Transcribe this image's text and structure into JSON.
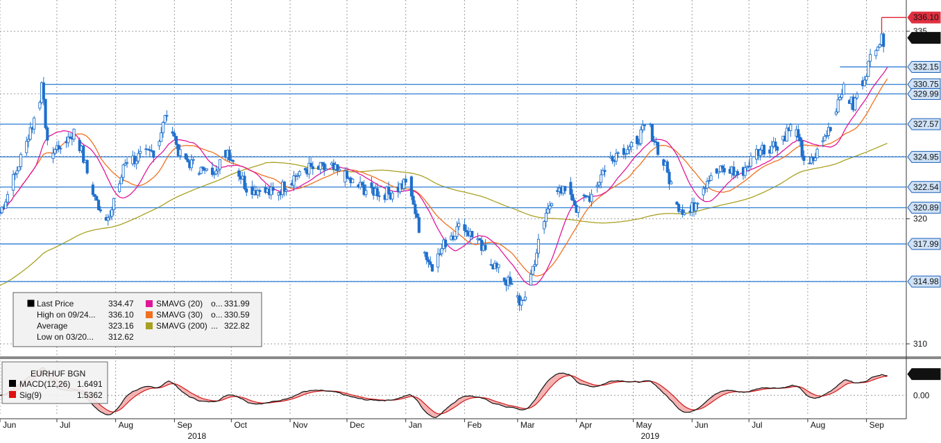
{
  "chart_data": {
    "type": "candlestick",
    "ticker": "EURHUF BGN",
    "price_axis": {
      "ylim": [
        309,
        337.5
      ],
      "ticks": [
        310,
        320,
        335
      ]
    },
    "macd_axis": {
      "ylim": [
        -1.6,
        2.6
      ],
      "ticks": [
        "0.00"
      ]
    },
    "x_months": [
      {
        "label": "Jun",
        "d": 0
      },
      {
        "label": "Jul",
        "d": 30
      },
      {
        "label": "Aug",
        "d": 61
      },
      {
        "label": "Sep",
        "d": 92
      },
      {
        "label": "Oct",
        "d": 122
      },
      {
        "label": "Nov",
        "d": 153
      },
      {
        "label": "Dec",
        "d": 183
      },
      {
        "label": "Jan",
        "d": 214
      },
      {
        "label": "Feb",
        "d": 245
      },
      {
        "label": "Mar",
        "d": 273
      },
      {
        "label": "Apr",
        "d": 304
      },
      {
        "label": "May",
        "d": 334
      },
      {
        "label": "Jun",
        "d": 365
      },
      {
        "label": "Jul",
        "d": 395
      },
      {
        "label": "Aug",
        "d": 426
      },
      {
        "label": "Sep",
        "d": 457
      }
    ],
    "x_years": [
      {
        "label": "2018",
        "d": 99
      },
      {
        "label": "2019",
        "d": 338
      }
    ],
    "price_anchors": [
      [
        0,
        320.5
      ],
      [
        8,
        323.5
      ],
      [
        18,
        328
      ],
      [
        22,
        330.4
      ],
      [
        26,
        325
      ],
      [
        32,
        326
      ],
      [
        40,
        327
      ],
      [
        50,
        321.5
      ],
      [
        58,
        320
      ],
      [
        66,
        324.5
      ],
      [
        82,
        325.5
      ],
      [
        88,
        328.5
      ],
      [
        95,
        325
      ],
      [
        110,
        323.5
      ],
      [
        120,
        325.5
      ],
      [
        130,
        322.5
      ],
      [
        145,
        322
      ],
      [
        160,
        324
      ],
      [
        175,
        324
      ],
      [
        190,
        322.5
      ],
      [
        205,
        322
      ],
      [
        216,
        323
      ],
      [
        222,
        318
      ],
      [
        228,
        316
      ],
      [
        236,
        318.5
      ],
      [
        244,
        319.5
      ],
      [
        252,
        318
      ],
      [
        262,
        316
      ],
      [
        270,
        314.5
      ],
      [
        276,
        313
      ],
      [
        284,
        318
      ],
      [
        290,
        321.5
      ],
      [
        300,
        322.5
      ],
      [
        304,
        321
      ],
      [
        312,
        322
      ],
      [
        322,
        325
      ],
      [
        334,
        326
      ],
      [
        342,
        327.5
      ],
      [
        350,
        324.5
      ],
      [
        358,
        321
      ],
      [
        364,
        320.5
      ],
      [
        374,
        323.5
      ],
      [
        384,
        324
      ],
      [
        390,
        323.5
      ],
      [
        400,
        325.5
      ],
      [
        410,
        326
      ],
      [
        418,
        327.5
      ],
      [
        426,
        324
      ],
      [
        432,
        325.5
      ],
      [
        438,
        327.5
      ],
      [
        444,
        330.5
      ],
      [
        450,
        329
      ],
      [
        456,
        331.5
      ],
      [
        462,
        334
      ],
      [
        468,
        334.47
      ]
    ],
    "levels": [
      "336.10",
      "332.15",
      "330.75",
      "329.99",
      "327.57",
      "324.95",
      "322.54",
      "320.89",
      "317.99",
      "314.98"
    ],
    "last_price_tag": "334.47",
    "macd_tag": "1.6491",
    "legend": {
      "rows": [
        {
          "label": "Last Price",
          "value": "334.47",
          "color": "#000000"
        },
        {
          "label": "High on 09/24...",
          "value": "336.10",
          "color": "#777777"
        },
        {
          "label": "Average",
          "value": "323.16",
          "color": "#777777"
        },
        {
          "label": "Low on 03/20...",
          "value": "312.62",
          "color": "#777777"
        }
      ],
      "sma_rows": [
        {
          "label": "SMAVG (20)",
          "sep": "o...",
          "value": "331.99",
          "color": "#e0169a"
        },
        {
          "label": "SMAVG (30)",
          "sep": "o...",
          "value": "330.59",
          "color": "#f07020"
        },
        {
          "label": "SMAVG (200)",
          "sep": "...",
          "value": "322.82",
          "color": "#a8a020"
        }
      ]
    },
    "macd_legend": {
      "title": "EURHUF BGN",
      "rows": [
        {
          "label": "MACD(12,26)",
          "value": "1.6491",
          "color": "#000000"
        },
        {
          "label": "Sig(9)",
          "value": "1.5362",
          "color": "#e01010"
        }
      ]
    },
    "colors": {
      "candle": "#1e6fcc",
      "level": "#3a86d8",
      "high": "#e03040",
      "sma20": "#e0169a",
      "sma30": "#f07020",
      "sma200": "#a8a020"
    }
  }
}
